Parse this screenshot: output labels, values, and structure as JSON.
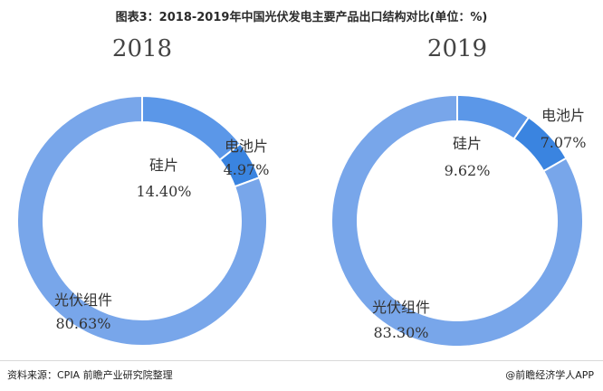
{
  "title": "图表3：2018-2019年中国光伏发电主要产品出口结构对比(单位：%)",
  "source": "资料来源：CPIA 前瞻产业研究院整理",
  "brand": "@前瞻经济学人APP",
  "colors": {
    "光伏组件": "#78a6ea",
    "电池片": "#3a84e0",
    "硅片": "#5b97e8",
    "separator": "#ffffff"
  },
  "chart_data": [
    {
      "type": "pie",
      "title": "2018",
      "labels": [
        "电池片",
        "光伏组件",
        "硅片"
      ],
      "values": [
        4.97,
        80.63,
        14.4
      ],
      "value_labels": [
        "4.97%",
        "80.63%",
        "14.40%"
      ]
    },
    {
      "type": "pie",
      "title": "2019",
      "labels": [
        "电池片",
        "光伏组件",
        "硅片"
      ],
      "values": [
        7.07,
        83.3,
        9.62
      ],
      "value_labels": [
        "7.07%",
        "83.30%",
        "9.62%"
      ]
    }
  ]
}
